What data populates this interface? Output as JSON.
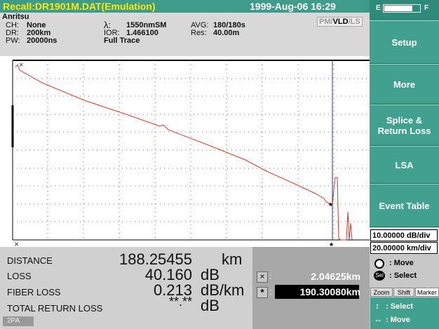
{
  "header": {
    "title": "Recall:DR1901M.DAT(Emulation)",
    "datetime": "1999-Aug-06 16:29",
    "battery_empty": "E",
    "battery_full": "F"
  },
  "info": {
    "brand": "Anritsu",
    "fields": [
      {
        "label": "CH:",
        "value": "None"
      },
      {
        "label": "DR:",
        "value": "200km"
      },
      {
        "label": "PW:",
        "value": "20000ns"
      },
      {
        "label": "λ:",
        "value": "1550nmSM"
      },
      {
        "label": "IOR:",
        "value": "1.466100"
      },
      {
        "label": "AVG:",
        "value": "180/180s"
      },
      {
        "label": "Res:",
        "value": "40.00m"
      }
    ],
    "trace_mode": "Full Trace",
    "modes": [
      "PM",
      "VLD",
      "LS"
    ],
    "mode_separator": "/"
  },
  "graph": {
    "start_marker": "×",
    "cursor_symbol": "*",
    "bottom_labels": [
      "×",
      "*"
    ]
  },
  "results": {
    "rows": [
      {
        "label": "DISTANCE",
        "value": "188.25455",
        "unit": "km"
      },
      {
        "label": "LOSS",
        "value": "40.160",
        "unit": "dB"
      },
      {
        "label": "FIBER LOSS",
        "value": "0.213",
        "unit": "dB/km"
      },
      {
        "label": "TOTAL RETURN LOSS",
        "value": "**.**",
        "unit": "dB"
      }
    ],
    "status": "2PA",
    "markers": [
      {
        "symbol": "×",
        "separator": ":",
        "value": "2.04625km"
      },
      {
        "symbol": "*",
        "separator": ":",
        "value": "190.30080km"
      }
    ]
  },
  "sidebar": {
    "buttons": [
      "Setup",
      "More",
      "Splice & Return Loss",
      "LSA",
      "Event Table"
    ],
    "scales": [
      "10.00000 dB/div",
      "20.00000 km/div"
    ],
    "hints": [
      {
        "icon": "",
        "text": ": Move"
      },
      {
        "icon": "Sel",
        "text": ": Select"
      }
    ],
    "tabs": [
      "Zoom",
      "Shift",
      "Marker"
    ],
    "keys": [
      {
        "icon": "↕",
        "text": ": Select"
      },
      {
        "icon": "↔",
        "text": ": Move"
      }
    ]
  }
}
